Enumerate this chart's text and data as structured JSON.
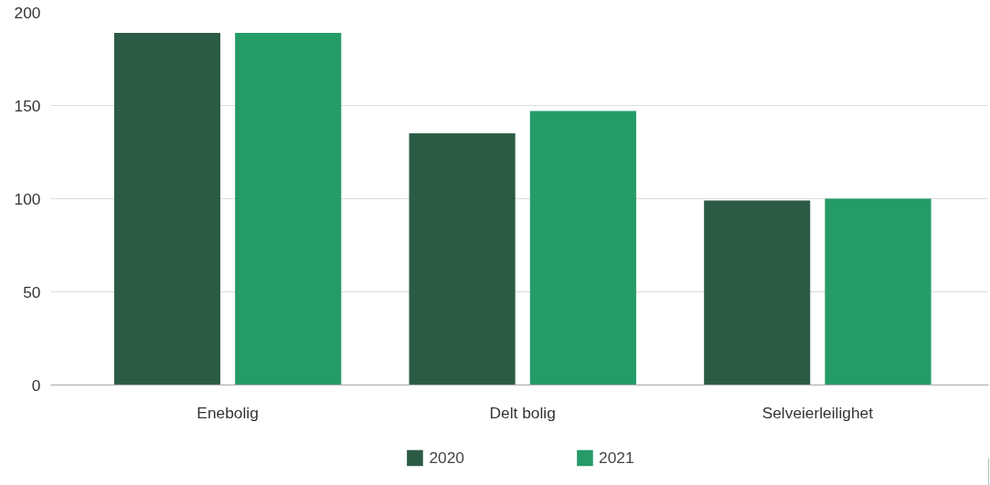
{
  "chart_data": {
    "type": "bar",
    "categories": [
      "Enebolig",
      "Delt bolig",
      "Selveierleilighet"
    ],
    "series": [
      {
        "name": "2020",
        "color": "#2c5b45",
        "values": [
          189,
          135,
          99
        ]
      },
      {
        "name": "2021",
        "color": "#259b68",
        "values": [
          189,
          147,
          100
        ]
      }
    ],
    "ylim": [
      0,
      200
    ],
    "yticks": [
      0,
      50,
      100,
      150,
      200
    ],
    "grid": "y",
    "legend": "bottom"
  }
}
